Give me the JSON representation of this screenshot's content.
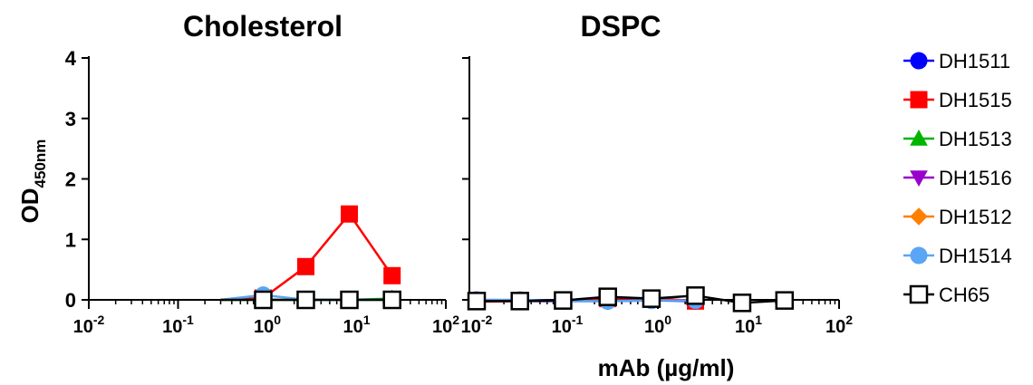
{
  "chart_data": [
    {
      "type": "line",
      "title": "Cholesterol",
      "xscale": "log",
      "xlim": [
        0.01,
        100
      ],
      "ylim": [
        0,
        4
      ],
      "yticks": [
        "0",
        "1",
        "2",
        "3",
        "4"
      ],
      "xtick_bases": [
        "10",
        "10",
        "10",
        "10",
        "10"
      ],
      "xtick_exps": [
        "-2",
        "-1",
        "0",
        "1",
        "2"
      ],
      "series": [
        {
          "name": "DH1515",
          "x": [
            0.3,
            0.9,
            2.7,
            8.3,
            25
          ],
          "y": [
            0,
            0.03,
            0.55,
            1.42,
            0.4
          ]
        },
        {
          "name": "DH1513",
          "x": [
            0.3,
            0.9,
            2.7,
            8.3,
            25
          ],
          "y": [
            0,
            0,
            0,
            0,
            0.02
          ]
        },
        {
          "name": "DH1514",
          "x": [
            0.3,
            0.9,
            2.7,
            8.3,
            25
          ],
          "y": [
            0,
            0.08,
            0,
            0,
            0
          ]
        },
        {
          "name": "CH65",
          "x": [
            0.3,
            0.9,
            2.7,
            8.3,
            25
          ],
          "y": [
            0,
            0,
            0,
            0,
            0
          ]
        }
      ]
    },
    {
      "type": "line",
      "title": "DSPC",
      "xscale": "log",
      "xlim": [
        0.01,
        100
      ],
      "ylim": [
        0,
        4
      ],
      "xtick_bases": [
        "10",
        "10",
        "10",
        "10",
        "10"
      ],
      "xtick_exps": [
        "-2",
        "-1",
        "0",
        "1",
        "2"
      ],
      "series": [
        {
          "name": "DH1511",
          "x": [
            0.01,
            0.03,
            0.09,
            0.28,
            0.85,
            2.6
          ],
          "y": [
            0,
            -0.02,
            -0.02,
            -0.02,
            -0.01,
            -0.02
          ]
        },
        {
          "name": "DH1515",
          "x": [
            0.01,
            0.03,
            0.09,
            0.28,
            0.85,
            2.6
          ],
          "y": [
            -0.03,
            -0.02,
            -0.01,
            0.02,
            0.03,
            -0.02
          ]
        },
        {
          "name": "DH1514",
          "x": [
            0.01,
            0.03,
            0.09,
            0.28,
            0.85,
            2.6
          ],
          "y": [
            0,
            0.0,
            -0.02,
            -0.02,
            -0.01,
            -0.01
          ]
        },
        {
          "name": "CH65",
          "x": [
            0.01,
            0.03,
            0.09,
            0.28,
            0.85,
            2.6,
            8.5,
            25
          ],
          "y": [
            -0.02,
            -0.02,
            -0.01,
            0.05,
            0.02,
            0.07,
            -0.05,
            -0.01
          ]
        }
      ]
    }
  ],
  "ylabel_main": "OD",
  "ylabel_sub": "450nm",
  "xlabel": "mAb (µg/ml)",
  "legend": [
    {
      "name": "DH1511",
      "color": "#0000ff",
      "marker": "circle",
      "filled": true
    },
    {
      "name": "DH1515",
      "color": "#ff0000",
      "marker": "square",
      "filled": true
    },
    {
      "name": "DH1513",
      "color": "#00b400",
      "marker": "triangle-up",
      "filled": true
    },
    {
      "name": "DH1516",
      "color": "#9900cc",
      "marker": "triangle-down",
      "filled": true
    },
    {
      "name": "DH1512",
      "color": "#ff7f00",
      "marker": "diamond",
      "filled": true
    },
    {
      "name": "DH1514",
      "color": "#5aa5f5",
      "marker": "circle",
      "filled": true
    },
    {
      "name": "CH65",
      "color": "#000000",
      "marker": "square",
      "filled": false
    }
  ]
}
